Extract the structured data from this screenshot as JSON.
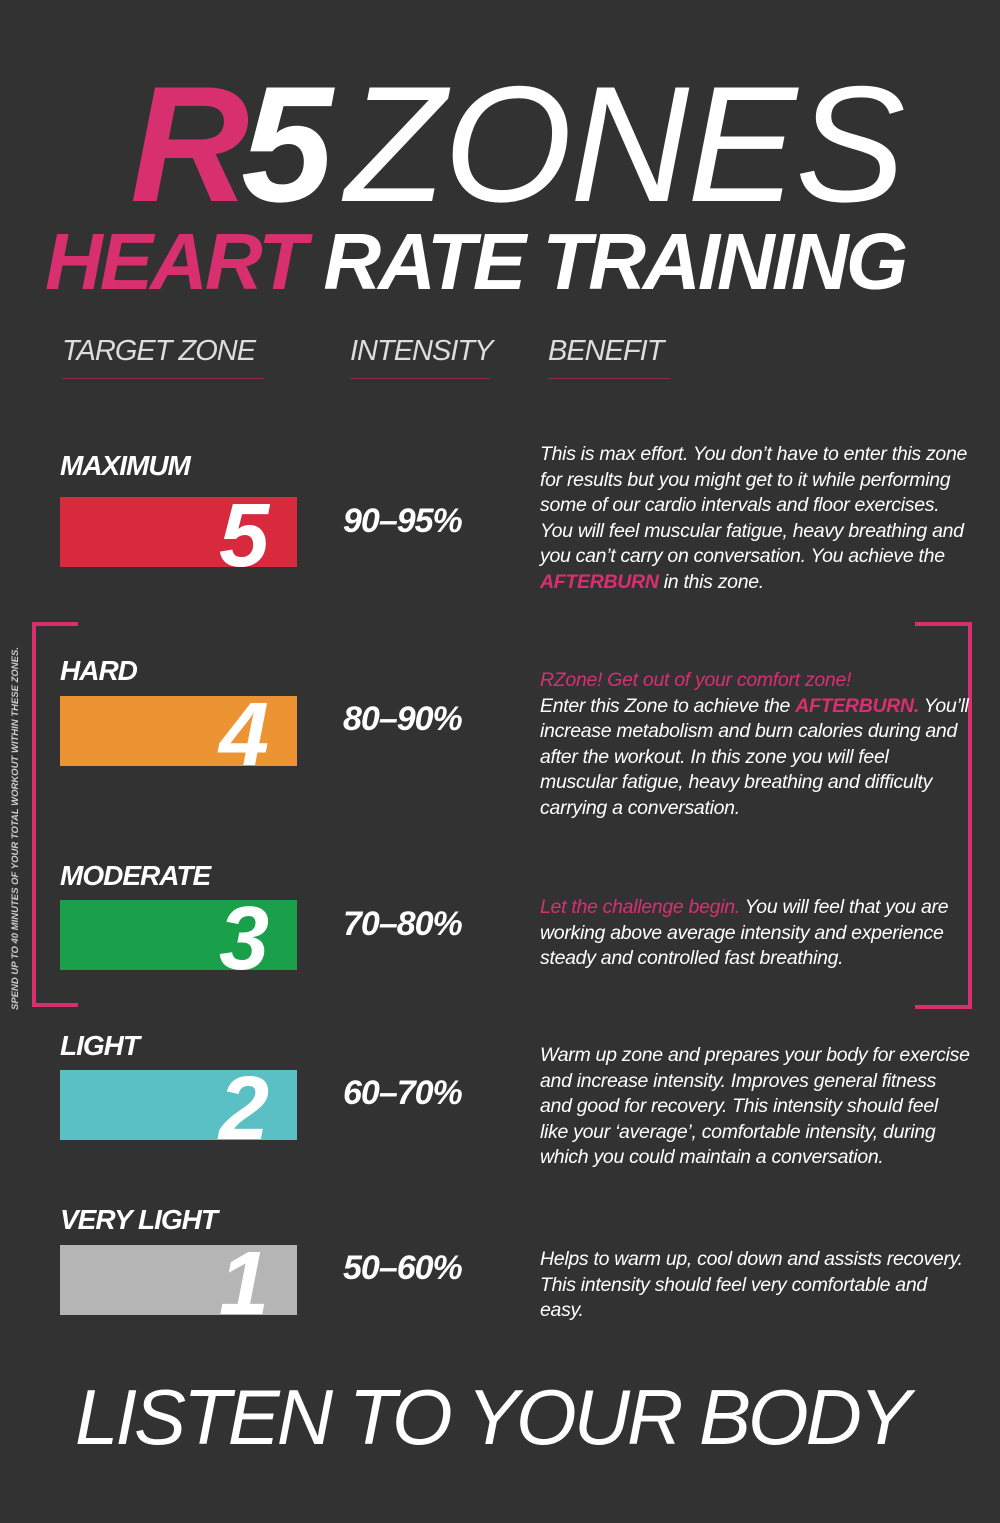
{
  "title": {
    "r5_r": "R",
    "r5_5": "5",
    "zones": "ZONES",
    "heart": "HEART",
    "rate_training": "RATE TRAINING"
  },
  "headers": {
    "target_zone": "TARGET ZONE",
    "intensity": "INTENSITY",
    "benefit": "BENEFIT"
  },
  "side_note": "SPEND UP TO 40 MINUTES OF YOUR TOTAL WORKOUT WITHIN THESE ZONES.",
  "colors": {
    "accent": "#d8306f",
    "background": "#323232",
    "zone5": "#d72a3c",
    "zone4": "#ec9434",
    "zone3": "#1aa04a",
    "zone2": "#5bc0c4",
    "zone1": "#b5b5b5"
  },
  "zones": [
    {
      "label": "MAXIMUM",
      "number": "5",
      "intensity": "90–95%",
      "desc_a": "This is max effort. You don’t have to enter this zone for results but you might get to it while performing some of our cardio intervals and floor exercises. You will feel muscular fatigue, heavy breathing and you can’t carry on conversation. You achieve the ",
      "highlight": "AFTERBURN",
      "desc_b": " in this zone."
    },
    {
      "label": "HARD",
      "number": "4",
      "intensity": "80–90%",
      "lead": "RZone! Get out of your comfort zone!",
      "desc_a": "Enter this Zone to achieve the ",
      "highlight": "AFTERBURN.",
      "desc_b": " You’ll increase metabolism and burn calories during and after the workout. In this zone you will feel muscular fatigue, heavy breathing and difficulty carrying a conversation."
    },
    {
      "label": "MODERATE",
      "number": "3",
      "intensity": "70–80%",
      "lead": "Let the challenge begin.",
      "desc_a": " You will feel that you are working above average intensity and experience steady and controlled fast breathing."
    },
    {
      "label": "LIGHT",
      "number": "2",
      "intensity": "60–70%",
      "desc_a": "Warm up zone and prepares your body for exercise and increase intensity. Improves general fitness and good for recovery. This intensity should feel like your ‘average’, comfortable intensity, during which you could maintain a conversation."
    },
    {
      "label": "VERY LIGHT",
      "number": "1",
      "intensity": "50–60%",
      "desc_a": "Helps to warm up, cool down and assists recovery. This intensity should feel very comfortable and easy."
    }
  ],
  "footer": "LISTEN TO YOUR BODY"
}
